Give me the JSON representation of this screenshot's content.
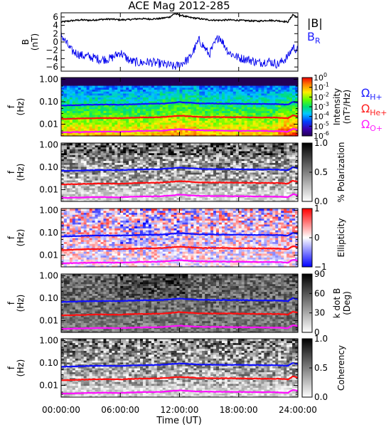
{
  "figure": {
    "title": "ACE Mag 2012-285",
    "xlabel": "Time (UT)",
    "xticks": [
      "00:00:00",
      "06:00:00",
      "12:00:00",
      "18:00:00",
      "24:00:00"
    ],
    "freq_ticks": [
      "1.00",
      "0.10",
      "0.01"
    ],
    "freq_label_line1": "f",
    "freq_label_line2": "(Hz)",
    "legend_b": "|B|",
    "legend_br": "B",
    "legend_br_sub": "R",
    "ion_labels": [
      {
        "base": "Ω",
        "sub": "H+",
        "color": "#2020ff"
      },
      {
        "base": "Ω",
        "sub": "He+",
        "color": "#ff2020"
      },
      {
        "base": "Ω",
        "sub": "O+",
        "color": "#ff20ff"
      }
    ]
  },
  "chart_data": [
    {
      "type": "line",
      "title": "",
      "ylabel": "B (nT)",
      "ylabel_line1": "B",
      "ylabel_line2": "(nT)",
      "x_range_hours": [
        0,
        24
      ],
      "ylim": [
        -7,
        7
      ],
      "yticks": [
        "6",
        "4",
        "2",
        "0",
        "−2",
        "−4",
        "−6"
      ],
      "series": [
        {
          "name": "|B|",
          "color": "#000000",
          "x_hours": [
            0,
            1,
            2,
            3,
            4,
            5,
            6,
            7,
            8,
            9,
            10,
            11,
            11.5,
            12,
            13,
            14,
            15,
            16,
            17,
            18,
            19,
            20,
            21,
            22,
            23,
            23.5,
            24
          ],
          "values": [
            4.8,
            5.1,
            5.3,
            5.2,
            5.4,
            5.5,
            5.3,
            5.4,
            5.6,
            5.5,
            5.6,
            6.0,
            6.8,
            6.5,
            5.9,
            5.6,
            5.3,
            5.2,
            5.3,
            5.2,
            5.1,
            5.0,
            5.2,
            5.1,
            4.8,
            6.6,
            5.8
          ]
        },
        {
          "name": "B_R",
          "color": "#0000ee",
          "x_hours": [
            0,
            1,
            2,
            3,
            4,
            5,
            6,
            7,
            8,
            9,
            10,
            11,
            11.5,
            12,
            13,
            14,
            15,
            16,
            17,
            18,
            19,
            20,
            21,
            22,
            23,
            23.5,
            24
          ],
          "values": [
            1.8,
            -2.0,
            -3.2,
            -3.6,
            -4.2,
            -4.0,
            -2.5,
            -4.6,
            -5.0,
            -4.8,
            -5.2,
            -5.6,
            -6.0,
            -5.4,
            -4.0,
            0.5,
            -3.0,
            1.5,
            -2.5,
            -3.8,
            -4.2,
            -5.0,
            -4.6,
            -5.4,
            -3.5,
            -1.2,
            -2.0
          ]
        }
      ]
    },
    {
      "type": "heatmap",
      "name": "wave power spectrum",
      "ylabel": "f (Hz)",
      "ylim": [
        0.003,
        1.2
      ],
      "y_scale": "log",
      "colorbar_label": "Intensity (nT²/Hz)",
      "colorbar_label_line1": "Intensity",
      "colorbar_label_line2": "(nT²/Hz)",
      "colorbar_ticks": [
        {
          "base": "10",
          "exp": "0"
        },
        {
          "base": "10",
          "exp": "-1"
        },
        {
          "base": "10",
          "exp": "-2"
        },
        {
          "base": "10",
          "exp": "-3"
        },
        {
          "base": "10",
          "exp": "-4"
        },
        {
          "base": "10",
          "exp": "-5"
        },
        {
          "base": "10",
          "exp": "-6"
        }
      ],
      "colormap": "rainbow"
    },
    {
      "type": "heatmap",
      "name": "polarization",
      "ylabel": "f (Hz)",
      "colorbar_label": "% Polarization",
      "colorbar_ticks": [
        "1.0",
        "0.5",
        "0.0"
      ],
      "colormap": "grayscale"
    },
    {
      "type": "heatmap",
      "name": "ellipticity",
      "ylabel": "f (Hz)",
      "colorbar_label": "Ellipticity",
      "colorbar_ticks": [
        "1",
        "0",
        "−1"
      ],
      "colormap": "blue-white-red"
    },
    {
      "type": "heatmap",
      "name": "wave normal angle",
      "ylabel": "f (Hz)",
      "colorbar_label": "k dot B (Deg)",
      "colorbar_label_line1": "k dot B",
      "colorbar_label_line2": "(Deg)",
      "colorbar_ticks": [
        "90",
        "60",
        "30",
        "0"
      ],
      "colormap": "grayscale"
    },
    {
      "type": "heatmap",
      "name": "coherency",
      "ylabel": "f (Hz)",
      "colorbar_label": "Coherency",
      "colorbar_ticks": [
        "1.0",
        "0.5",
        "0.0"
      ],
      "colormap": "grayscale"
    }
  ],
  "gyrofrequencies": {
    "x_hours": [
      0,
      2,
      4,
      6,
      8,
      10,
      11,
      12,
      13,
      14,
      16,
      18,
      20,
      22,
      23,
      23.5,
      24
    ],
    "H+": [
      0.068,
      0.072,
      0.075,
      0.074,
      0.08,
      0.082,
      0.088,
      0.096,
      0.09,
      0.085,
      0.083,
      0.082,
      0.08,
      0.079,
      0.074,
      0.1,
      0.09
    ],
    "He+": [
      0.017,
      0.018,
      0.0188,
      0.0185,
      0.02,
      0.0205,
      0.022,
      0.024,
      0.0225,
      0.021,
      0.0208,
      0.0205,
      0.02,
      0.0198,
      0.0185,
      0.025,
      0.0225
    ],
    "O+": [
      0.0043,
      0.0045,
      0.0047,
      0.0046,
      0.005,
      0.0051,
      0.0055,
      0.006,
      0.0056,
      0.0053,
      0.0052,
      0.0051,
      0.005,
      0.0049,
      0.0046,
      0.0063,
      0.0056
    ]
  }
}
